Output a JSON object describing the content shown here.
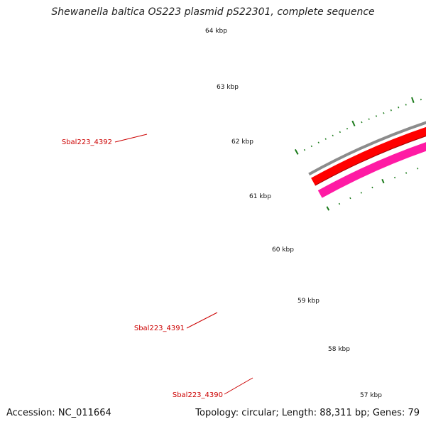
{
  "title": "Shewanella baltica OS223 plasmid pS22301, complete sequence",
  "accession": "Accession: NC_011664",
  "topology": "Topology: circular; Length: 88,311 bp; Genes: 79",
  "colors": {
    "backbone": "#8c8c8c",
    "red_gene": "#ff0000",
    "magenta_gene": "#ff1aa4",
    "green_gene": "#aaff22",
    "tick": "#1a7a1a",
    "gene_label": "#cc0000"
  },
  "ticks": [
    {
      "label": "64 kbp"
    },
    {
      "label": "63 kbp"
    },
    {
      "label": "62 kbp"
    },
    {
      "label": "61 kbp"
    },
    {
      "label": "60 kbp"
    },
    {
      "label": "59 kbp"
    },
    {
      "label": "58 kbp"
    },
    {
      "label": "57 kbp"
    }
  ],
  "genes": [
    {
      "name": "Sbal223_4392",
      "color": "magenta_gene"
    },
    {
      "name": "Sbal223_4391",
      "color": "red_gene"
    },
    {
      "name": "Sbal223_4390",
      "color": "green_gene"
    }
  ]
}
